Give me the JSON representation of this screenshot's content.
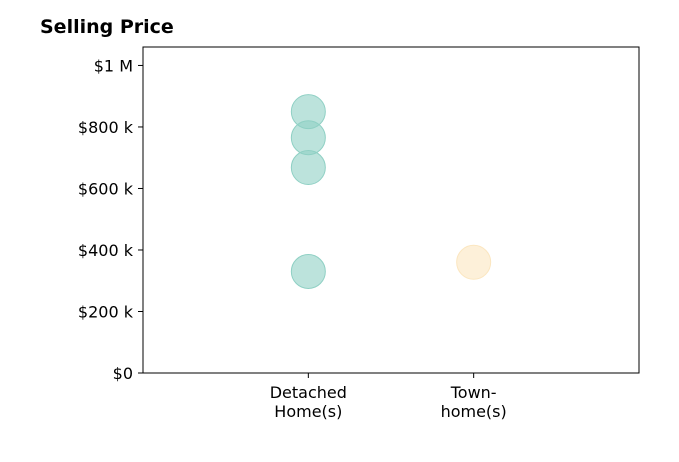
{
  "chart_data": {
    "type": "scatter",
    "title": "Selling Price",
    "xlabel": "",
    "ylabel": "",
    "categories": [
      [
        "Detached",
        "Home(s)"
      ],
      [
        "Town-",
        "home(s)"
      ]
    ],
    "y_ticks": [
      {
        "value": 0,
        "label": "$0"
      },
      {
        "value": 200000,
        "label": "$200 k"
      },
      {
        "value": 400000,
        "label": "$400 k"
      },
      {
        "value": 600000,
        "label": "$600 k"
      },
      {
        "value": 800000,
        "label": "$800 k"
      },
      {
        "value": 1000000,
        "label": "$1 M"
      }
    ],
    "ylim": [
      0,
      1060000
    ],
    "xlim": [
      0,
      3
    ],
    "grid": false,
    "series": [
      {
        "category_index": 0,
        "color": "#8fd0c4",
        "values": [
          850000,
          765000,
          668000,
          330000
        ]
      },
      {
        "category_index": 1,
        "color": "#fbe6c0",
        "values": [
          360000
        ]
      }
    ]
  }
}
